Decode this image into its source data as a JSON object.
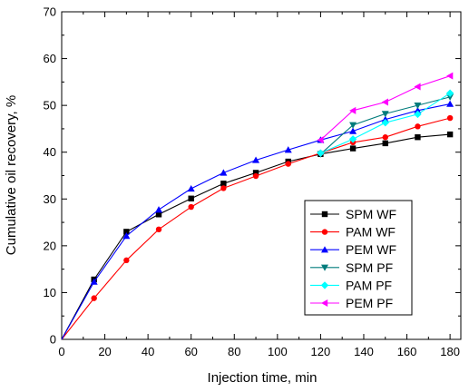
{
  "chart_data": {
    "type": "line",
    "xlabel": "Injection time, min",
    "ylabel": "Cumulative oil recovery, %",
    "xlim": [
      0,
      185
    ],
    "ylim": [
      0,
      70
    ],
    "xticks": [
      0,
      20,
      40,
      60,
      80,
      100,
      120,
      140,
      160,
      180
    ],
    "yticks": [
      0,
      10,
      20,
      30,
      40,
      50,
      60,
      70
    ],
    "grid": false,
    "legend_position": "bottom-right",
    "series": [
      {
        "name": "SPM WF",
        "color": "#000000",
        "marker": "square",
        "x": [
          0,
          15,
          30,
          45,
          60,
          75,
          90,
          105,
          120,
          135,
          150,
          165,
          180
        ],
        "y": [
          0,
          12.8,
          23.0,
          26.7,
          30.1,
          33.3,
          35.6,
          38.0,
          39.6,
          40.8,
          41.9,
          43.2,
          43.8
        ]
      },
      {
        "name": "PAM WF",
        "color": "#ff0000",
        "marker": "circle",
        "x": [
          0,
          15,
          30,
          45,
          60,
          75,
          90,
          105,
          120,
          135,
          150,
          165,
          180
        ],
        "y": [
          0,
          8.8,
          16.9,
          23.5,
          28.3,
          32.3,
          34.9,
          37.5,
          39.8,
          42.1,
          43.2,
          45.5,
          47.3
        ]
      },
      {
        "name": "PEM WF",
        "color": "#0000ff",
        "marker": "triangle-up",
        "x": [
          0,
          15,
          30,
          45,
          60,
          75,
          90,
          105,
          120,
          135,
          150,
          165,
          180
        ],
        "y": [
          0,
          12.3,
          22.1,
          27.7,
          32.2,
          35.6,
          38.3,
          40.5,
          42.6,
          44.5,
          47.0,
          48.9,
          50.3
        ]
      },
      {
        "name": "SPM PF",
        "color": "#007b7b",
        "marker": "triangle-down",
        "x": [
          120,
          135,
          150,
          165,
          180
        ],
        "y": [
          39.6,
          45.8,
          48.2,
          50.0,
          51.8
        ]
      },
      {
        "name": "PAM PF",
        "color": "#00ffff",
        "marker": "diamond",
        "x": [
          120,
          135,
          150,
          165,
          180
        ],
        "y": [
          39.8,
          42.8,
          46.3,
          48.1,
          52.6
        ]
      },
      {
        "name": "PEM PF",
        "color": "#ff00ff",
        "marker": "triangle-left",
        "x": [
          120,
          135,
          150,
          165,
          180
        ],
        "y": [
          42.6,
          48.9,
          50.7,
          54.0,
          56.3
        ]
      }
    ]
  }
}
